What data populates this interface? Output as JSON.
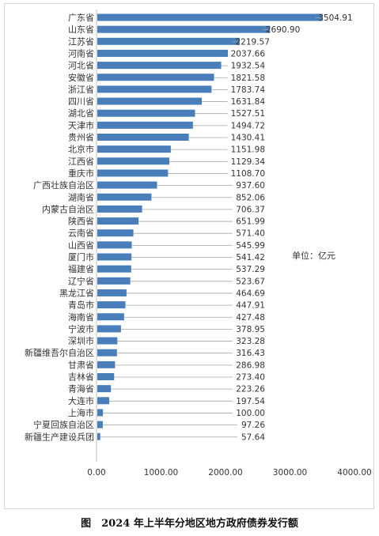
{
  "chart_data": {
    "type": "bar",
    "orientation": "horizontal",
    "categories": [
      "广东省",
      "山东省",
      "江苏省",
      "河南省",
      "河北省",
      "安徽省",
      "浙江省",
      "四川省",
      "湖北省",
      "天津市",
      "贵州省",
      "北京市",
      "江西省",
      "重庆市",
      "广西壮族自治区",
      "湖南省",
      "内蒙古自治区",
      "陕西省",
      "云南省",
      "山西省",
      "厦门市",
      "福建省",
      "辽宁省",
      "黑龙江省",
      "青岛市",
      "海南省",
      "宁波市",
      "深圳市",
      "新疆维吾尔自治区",
      "甘肃省",
      "吉林省",
      "青海省",
      "大连市",
      "上海市",
      "宁夏回族自治区",
      "新疆生产建设兵团"
    ],
    "values": [
      3504.91,
      2690.9,
      2219.57,
      2037.66,
      1932.54,
      1821.58,
      1783.74,
      1631.84,
      1527.51,
      1494.72,
      1430.41,
      1151.98,
      1129.34,
      1108.7,
      937.6,
      852.06,
      706.37,
      651.99,
      571.4,
      545.99,
      541.42,
      537.29,
      523.67,
      464.69,
      447.91,
      427.48,
      378.95,
      323.28,
      316.43,
      286.98,
      273.4,
      223.26,
      197.54,
      100.0,
      97.26,
      57.64
    ],
    "value_labels": [
      "3504.91",
      "2690.90",
      "2219.57",
      "2037.66",
      "1932.54",
      "1821.58",
      "1783.74",
      "1631.84",
      "1527.51",
      "1494.72",
      "1430.41",
      "1151.98",
      "1129.34",
      "1108.70",
      "937.60",
      "852.06",
      "706.37",
      "651.99",
      "571.40",
      "545.99",
      "541.42",
      "537.29",
      "523.67",
      "464.69",
      "447.91",
      "427.48",
      "378.95",
      "323.28",
      "316.43",
      "286.98",
      "273.40",
      "223.26",
      "197.54",
      "100.00",
      "97.26",
      "57.64"
    ],
    "xlim": [
      0,
      4000
    ],
    "x_ticks": [
      "0.00",
      "1000.00",
      "2000.00",
      "3000.00",
      "4000.00"
    ],
    "x_tick_values": [
      0,
      1000,
      2000,
      3000,
      4000
    ],
    "unit": "单位：亿元",
    "caption": "图　2024 年上半年分地区地方政府债券发行额",
    "bar_color": "#4a7ebb",
    "grid": false,
    "leader_line_color": "#a6a6a6"
  }
}
